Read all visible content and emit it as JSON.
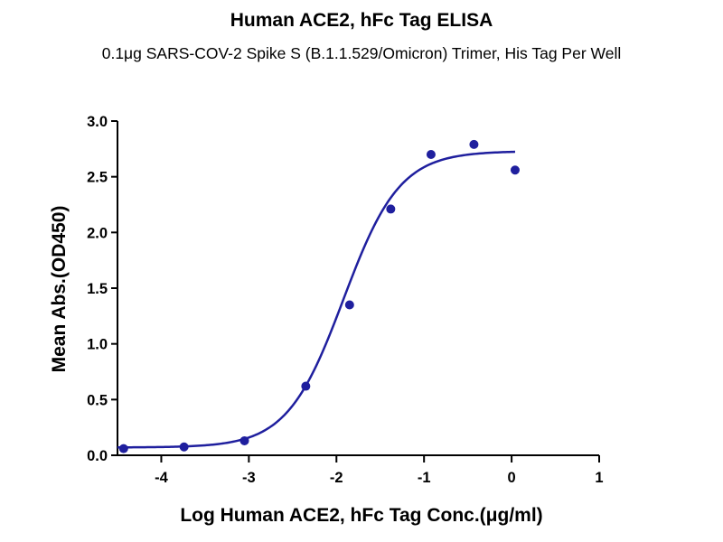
{
  "chart_data": {
    "type": "scatter",
    "title": "Human ACE2, hFc Tag ELISA",
    "subtitle": "0.1μg SARS-COV-2 Spike S (B.1.1.529/Omicron) Trimer, His Tag Per Well",
    "xlabel": "Log Human ACE2, hFc Tag Conc.(μg/ml)",
    "ylabel": "Mean Abs.(OD450)",
    "xlim": [
      -4.5,
      1
    ],
    "ylim": [
      0,
      3.0
    ],
    "x_ticks": [
      -4,
      -3,
      -2,
      -1,
      0,
      1
    ],
    "x_tick_labels": [
      "-4",
      "-3",
      "-2",
      "-1",
      "0",
      "1"
    ],
    "y_ticks": [
      0,
      0.5,
      1.0,
      1.5,
      2.0,
      2.5,
      3.0
    ],
    "y_tick_labels": [
      "0.0",
      "0.5",
      "1.0",
      "1.5",
      "2.0",
      "2.5",
      "3.0"
    ],
    "grid": false,
    "legend": "none",
    "series": [
      {
        "type": "scatter",
        "color": "#1f1f9e",
        "points": [
          {
            "x": -4.43,
            "y": 0.06
          },
          {
            "x": -3.74,
            "y": 0.075
          },
          {
            "x": -3.05,
            "y": 0.13
          },
          {
            "x": -2.35,
            "y": 0.62
          },
          {
            "x": -1.85,
            "y": 1.35
          },
          {
            "x": -1.38,
            "y": 2.21
          },
          {
            "x": -0.92,
            "y": 2.7
          },
          {
            "x": -0.43,
            "y": 2.79
          },
          {
            "x": 0.04,
            "y": 2.56
          }
        ]
      },
      {
        "type": "fitted-curve",
        "model": "4PL",
        "color": "#1f1f9e",
        "x_range": [
          -4.5,
          0.04
        ],
        "bottom": 0.07,
        "top": 2.73,
        "log_ec50": -1.92,
        "hill_slope": 1.35
      }
    ]
  }
}
